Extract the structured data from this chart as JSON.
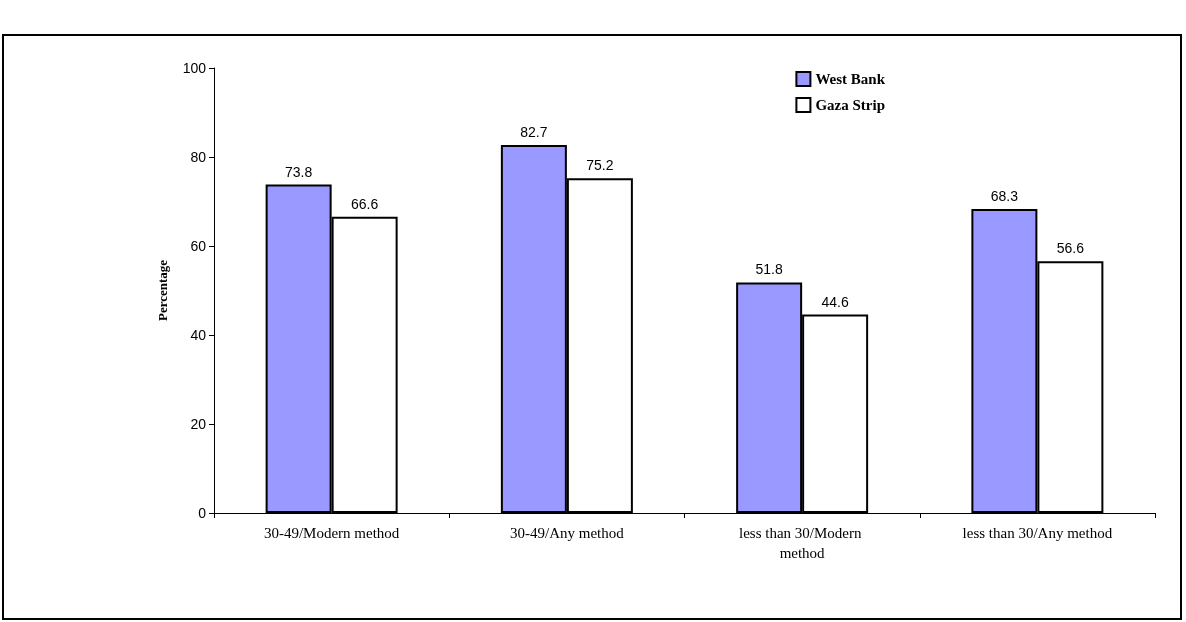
{
  "chart_data": {
    "type": "bar",
    "ylabel": "Percentage",
    "categories": [
      "30-49/Modern method",
      "30-49/Any method",
      "less than 30/Modern method",
      "less than 30/Any method"
    ],
    "series": [
      {
        "name": "West Bank",
        "color": "#9999ff",
        "values": [
          73.8,
          82.7,
          51.8,
          68.3
        ]
      },
      {
        "name": "Gaza Strip",
        "color": "#ffffff",
        "values": [
          66.6,
          75.2,
          44.6,
          56.6
        ]
      }
    ],
    "ylim": [
      0,
      100
    ],
    "yticks": [
      0,
      20,
      40,
      60,
      80,
      100
    ],
    "data_labels": true,
    "grid": false,
    "legend": "top right"
  }
}
